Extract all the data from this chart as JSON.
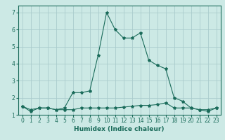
{
  "xlabel": "Humidex (Indice chaleur)",
  "x_values": [
    0,
    1,
    2,
    3,
    4,
    5,
    6,
    7,
    8,
    9,
    10,
    11,
    12,
    13,
    14,
    15,
    16,
    17,
    18,
    19,
    20,
    21,
    22,
    23
  ],
  "line1_y": [
    1.5,
    1.2,
    1.4,
    1.4,
    1.3,
    1.4,
    2.3,
    2.3,
    2.4,
    4.5,
    7.0,
    6.0,
    5.5,
    5.5,
    5.8,
    4.2,
    3.9,
    3.7,
    2.0,
    1.8,
    1.4,
    1.3,
    1.2,
    1.4
  ],
  "line2_y": [
    1.5,
    1.3,
    1.4,
    1.4,
    1.3,
    1.3,
    1.3,
    1.4,
    1.4,
    1.4,
    1.4,
    1.4,
    1.45,
    1.5,
    1.55,
    1.55,
    1.6,
    1.7,
    1.4,
    1.4,
    1.4,
    1.3,
    1.3,
    1.4
  ],
  "line_color": "#1a6b5a",
  "bg_color": "#cce9e5",
  "grid_color": "#aacccc",
  "ylim": [
    1.0,
    7.4
  ],
  "xlim": [
    -0.5,
    23.5
  ],
  "yticks": [
    1,
    2,
    3,
    4,
    5,
    6,
    7
  ],
  "xticks": [
    0,
    1,
    2,
    3,
    4,
    5,
    6,
    7,
    8,
    9,
    10,
    11,
    12,
    13,
    14,
    15,
    16,
    17,
    18,
    19,
    20,
    21,
    22,
    23
  ],
  "marker": "*",
  "marker_size": 3,
  "line_width": 0.8,
  "xlabel_fontsize": 6.5,
  "tick_fontsize": 5.5
}
